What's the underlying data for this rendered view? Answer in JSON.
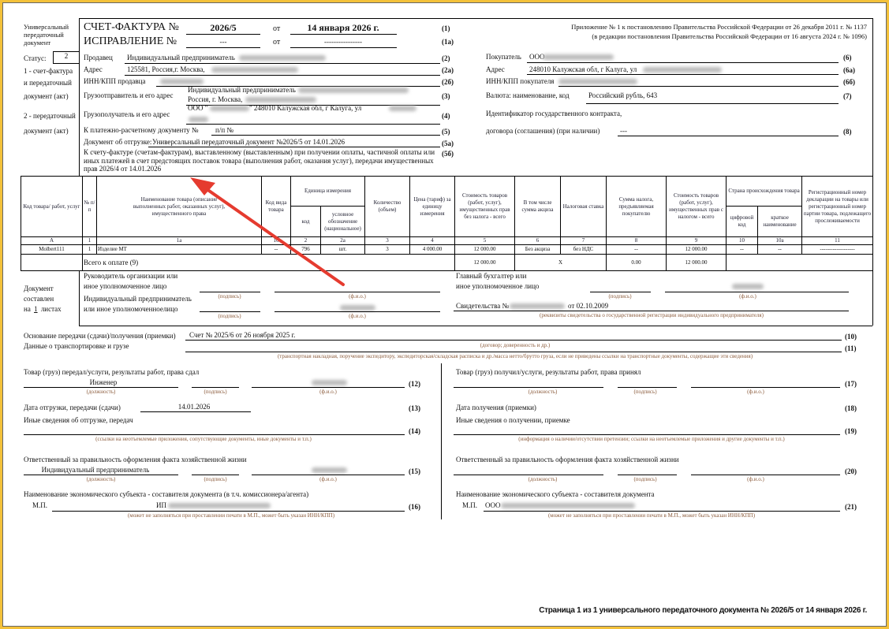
{
  "left_labels": {
    "doc_type": "Универсальный передаточный документ",
    "status_label": "Статус:",
    "status_value": "2",
    "s1a": "1 - счет-фактура",
    "s1b": "и передаточный",
    "s1c": "документ (акт)",
    "s2a": "2 - передаточный",
    "s2b": "документ (акт)"
  },
  "header": {
    "invoice_label": "СЧЕТ-ФАКТУРА №",
    "invoice_number": "2026/5",
    "from": "от",
    "invoice_date": "14 января 2026 г.",
    "code1": "(1)",
    "correction_label": "ИСПРАВЛЕНИЕ №",
    "correction_number": "---",
    "correction_date": "----------------",
    "code1a": "(1а)",
    "appendix_line1": "Приложение № 1 к постановлению Правительства Российской Федерации от 26 декабря 2011 г. № 1137",
    "appendix_line2": "(в редакции постановления Правительства Российской Федерации от 16 августа 2024 г. № 1096)"
  },
  "seller": {
    "seller_label": "Продавец",
    "seller_value": "Индивидуальный предприниматель",
    "code2": "(2)",
    "address_label": "Адрес",
    "address_value": "125581, Россия,г. Москва,",
    "code2a": "(2а)",
    "inn_label": "ИНН/КПП продавца",
    "code2b": "(2б)",
    "shipper_label": "Грузоотправитель и его адрес",
    "shipper_line1": "Индивидуальный предприниматель",
    "shipper_line2": "Россия, г. Москва,",
    "code3": "(3)",
    "consignee_label": "Грузополучатель и его адрес",
    "consignee_value": "ООО \"",
    "consignee_value2": "\" 248010 Калужская обл, г Калуга, ул",
    "code4": "(4)",
    "payment_label": "К платежно-расчетному документу №",
    "payment_value": "п/п №",
    "code5": "(5)",
    "shipment_label": "Документ об отгрузке:",
    "shipment_value": "Универсальный передаточный документ №2026/5 от 14.01.2026",
    "code5a": "(5а)",
    "advance_text": "К счету-фактуре (счетам-фактурам), выставленному (выставленным) при получении оплаты, частичной оплаты или иных платежей в счет предстоящих поставок товара (выполнения работ, оказания услуг), передачи имущественных прав 2026/4 от 14.01.2026",
    "code5b": "(5б)"
  },
  "buyer": {
    "buyer_label": "Покупатель",
    "buyer_value": "ООО",
    "code6": "(6)",
    "address_label": "Адрес",
    "address_value": "248010 Калужская обл, г Калуга, ул",
    "code6a": "(6а)",
    "inn_label": "ИНН/КПП покупателя",
    "code6b": "(6б)",
    "currency_label": "Валюта: наименование, код",
    "currency_value": "Российский рубль, 643",
    "code7": "(7)",
    "contract_label1": "Идентификатор государственного контракта,",
    "contract_label2": "договора (соглашения) (при наличии)",
    "contract_value": "---",
    "code8": "(8)"
  },
  "table": {
    "headers": {
      "code": "Код товара/ работ, услуг",
      "num": "№ п/п",
      "name": "Наименование товара (описание выполненных работ, оказанных услуг), имущественного права",
      "kind": "Код вида товара",
      "unit": "Единица измерения",
      "unit_code": "код",
      "unit_name": "условное обозначение (национальное)",
      "qty": "Количество (объем)",
      "price": "Цена (тариф) за единицу измерения",
      "cost_no_tax": "Стоимость товаров (работ, услуг), имущественных прав без налога - всего",
      "excise": "В том числе сумма акциза",
      "rate": "Налоговая ставка",
      "tax": "Сумма налога, предъявляемая покупателю",
      "cost_tax": "Стоимость товаров (работ, услуг), имущественных прав с налогом - всего",
      "country": "Страна происхождения товара",
      "country_code": "цифровой код",
      "country_name": "краткое наименование",
      "decl": "Регистрационный номер декларации на товары или регистрационный номер партии товара, подлежащего прослеживаемости"
    },
    "col_numbers": [
      "А",
      "1",
      "1а",
      "1б",
      "2",
      "2а",
      "3",
      "4",
      "5",
      "6",
      "7",
      "8",
      "9",
      "10",
      "10а",
      "11"
    ],
    "rows": [
      [
        "Molbert111",
        "1",
        "Изделие МТ",
        "--",
        "796",
        "шт.",
        "3",
        "4 000.00",
        "12 000.00",
        "Без акциза",
        "без НДС",
        "--",
        "12 000.00",
        "--",
        "--",
        "-------------------"
      ]
    ],
    "total": {
      "label": "Всего к оплате (9)",
      "cost_no_tax": "12 000.00",
      "x": "X",
      "tax": "0.00",
      "cost_tax": "12 000.00"
    }
  },
  "signatures": {
    "pages_l1": "Документ",
    "pages_l2": "составлен",
    "pages_l3a": "на",
    "pages_count": "1",
    "pages_l3b": "листах",
    "head_l1": "Руководитель организации или",
    "head_l2": "иное уполномоченное лицо",
    "ip_l1": "Индивидуальный предприниматель",
    "ip_l2": "или иное уполномоченноелицо",
    "acc_l1": "Главный бухгалтер или",
    "acc_l2": "иное уполномоченное лицо",
    "cert_label": "Свидетельства №",
    "cert_date": "от 02.10.2009",
    "hint_sign": "(подпись)",
    "hint_fio": "(ф.и.о.)",
    "hint_cert": "(реквизиты свидетельства о государственной регистрации индивидуального предпринимателя)"
  },
  "transfer": {
    "basis_label": "Основание передачи (сдачи)/получения (приемки)",
    "basis_value": "Счет № 2025/6 от 26 ноября 2025 г.",
    "code10": "(10)",
    "transport_label": "Данные о транспортировке и грузе",
    "hint_basis": "(договор; доверенность и др.)",
    "code11": "(11)",
    "hint_transport": "(транспортная накладная, поручение экспедитору, экспедиторская/складская расписка и др./масса нетто/брутто груза, если не приведены ссылки на транспортные документы, содержащие эти сведения)"
  },
  "left": {
    "handed_label": "Товар (груз) передал/услуги, результаты работ, права сдал",
    "handed_position": "Инженер",
    "code12": "(12)",
    "hint_position": "(должность)",
    "hint_sign": "(подпись)",
    "hint_fio": "(ф.и.о.)",
    "date_label": "Дата отгрузки, передачи (сдачи)",
    "date_value": "14.01.2026",
    "code13": "(13)",
    "other_label": "Иные сведения об отгрузке, передач",
    "code14": "(14)",
    "hint_other": "(ссылки на неотъемлемые приложения, сопутствующие документы, иные документы и т.п.)",
    "resp_label": "Ответственный за правильность оформления факта хозяйственной жизни",
    "resp_position": "Индивидуальный предприниматель",
    "code15": "(15)",
    "entity_label": "Наименование экономического субъекта - составителя документа (в т.ч. комиссионера/агента)",
    "mp": "М.П.",
    "entity_value": "ИП",
    "code16": "(16)",
    "hint_entity": "(может не заполняться при проставлении печати в М.П., может быть указан ИНН/КПП)"
  },
  "right": {
    "received_label": "Товар (груз) получил/услуги, результаты работ, права принял",
    "code17": "(17)",
    "hint_position": "(должность)",
    "hint_sign": "(подпись)",
    "hint_fio": "(ф.и.о.)",
    "date_label": "Дата получения (приемки)",
    "code18": "(18)",
    "other_label": "Иные сведения о получении, приемке",
    "code19": "(19)",
    "hint_other": "(информация о наличии/отсутствии претензии; ссылки на неотъемлемые приложения и другие документы и т.п.)",
    "resp_label": "Ответственный за правильность оформления факта хозяйственной жизни",
    "code20": "(20)",
    "entity_label": "Наименование экономического субъекта - составителя документа",
    "mp": "М.П.",
    "entity_value": "ООО",
    "code21": "(21)",
    "hint_entity": "(может не заполняться при проставлении печати в М.П., может быть указан ИНН/КПП)"
  },
  "footer": {
    "text": "Страница 1 из 1 универсального передаточного документа № 2026/5 от 14 января 2026 г."
  },
  "annotation": {
    "arrow_color": "#e53b2f",
    "icon": "arrow-annotation-icon"
  },
  "colors": {
    "frame": "#f3c13a",
    "hint": "#8a5a3a"
  }
}
